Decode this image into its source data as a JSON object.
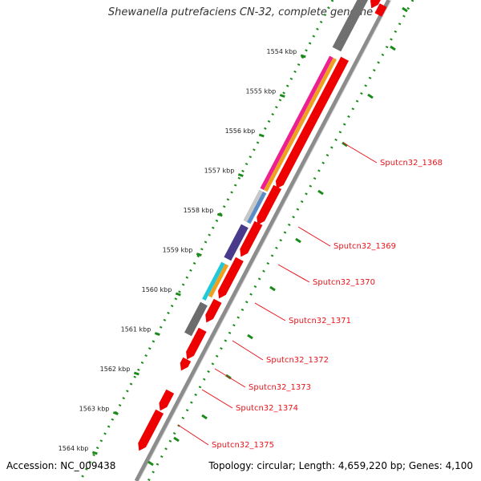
{
  "title": "Shewanella putrefaciens CN-32, complete genome",
  "accession": "Accession: NC_009438",
  "summary": "Topology: circular; Length: 4,659,220 bp; Genes: 4,100",
  "scale_ticks": [
    "1554 kbp",
    "1555 kbp",
    "1556 kbp",
    "1557 kbp",
    "1558 kbp",
    "1559 kbp",
    "1560 kbp",
    "1561 kbp",
    "1562 kbp",
    "1563 kbp",
    "1564 kbp"
  ],
  "gene_labels": [
    "Sputcn32_1368",
    "Sputcn32_1369",
    "Sputcn32_1370",
    "Sputcn32_1371",
    "Sputcn32_1372",
    "Sputcn32_1373",
    "Sputcn32_1374",
    "Sputcn32_1375"
  ],
  "colors": {
    "cds": "#ee0000",
    "backbone": "#8c8c8c",
    "scale_dots": "#1a8a1a",
    "gc_ticks": "#1a8a1a",
    "label_line": "#e8141b",
    "orange": "#f0a020",
    "magenta": "#ee2090",
    "steelblue": "#5a8cc8",
    "lightgray": "#c8c8c8",
    "purple": "#4a3a8c",
    "cyan": "#20c8d8",
    "darkgray": "#6c6c6c"
  }
}
